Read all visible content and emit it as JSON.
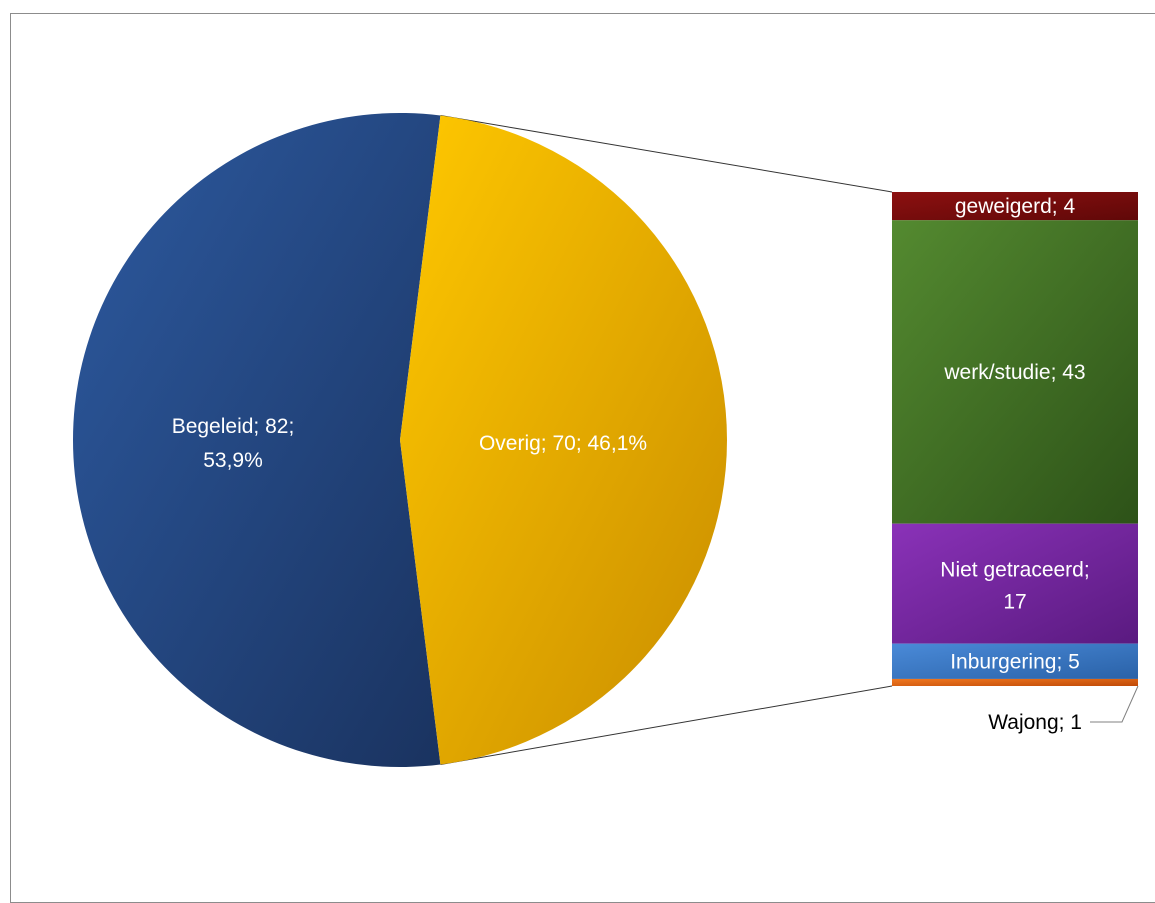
{
  "chart_data": {
    "type": "bar-of-pie",
    "pie": {
      "slices": [
        {
          "label": "Begeleid",
          "value": 82,
          "percent": "53,9%",
          "label_line1": "Begeleid; 82;",
          "label_line2": "53,9%",
          "color": "#264d8c"
        },
        {
          "label": "Overig",
          "value": 70,
          "percent": "46,1%",
          "label_line1": "Overig; 70; 46,1%",
          "color": "#f2b800"
        }
      ]
    },
    "bar": {
      "segments": [
        {
          "label": "geweigerd",
          "value": 4,
          "label_line1": "geweigerd; 4",
          "color": "#7a0c0c"
        },
        {
          "label": "werk/studie",
          "value": 43,
          "label_line1": "werk/studie; 43",
          "color": "#4a7a2a"
        },
        {
          "label": "Niet getraceerd",
          "value": 17,
          "label_line1": "Niet getraceerd;",
          "label_line2": "17",
          "color": "#7a2aa8"
        },
        {
          "label": "Inburgering",
          "value": 5,
          "label_line1": "Inburgering;  5",
          "color": "#3a78c8"
        },
        {
          "label": "Wajong",
          "value": 1,
          "label_line1": "Wajong; 1",
          "color": "#e06010"
        }
      ]
    }
  }
}
